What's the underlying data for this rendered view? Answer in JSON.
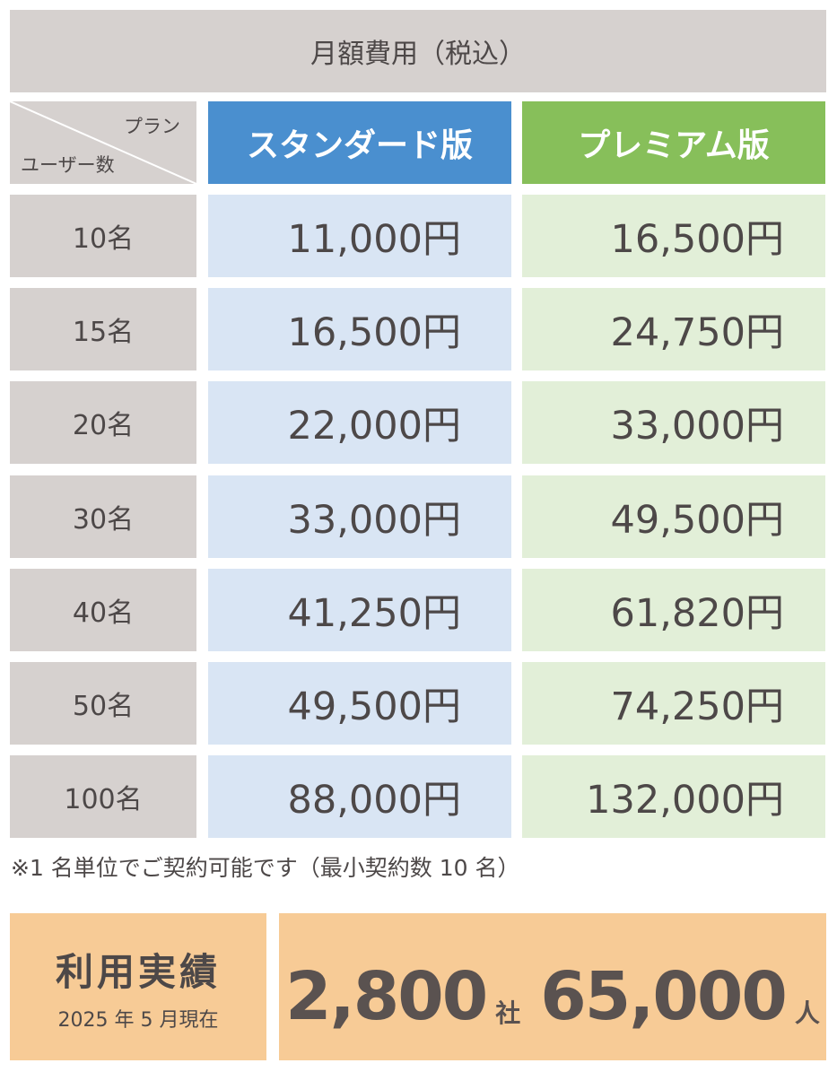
{
  "title": "月額費用（税込）",
  "corner": {
    "plan_label": "プラン",
    "user_label": "ユーザー数"
  },
  "plans": {
    "standard": "スタンダード版",
    "premium": "プレミアム版"
  },
  "rows": [
    {
      "users": "10名",
      "standard": "11,000円",
      "premium": "16,500円"
    },
    {
      "users": "15名",
      "standard": "16,500円",
      "premium": "24,750円"
    },
    {
      "users": "20名",
      "standard": "22,000円",
      "premium": "33,000円"
    },
    {
      "users": "30名",
      "standard": "33,000円",
      "premium": "49,500円"
    },
    {
      "users": "40名",
      "standard": "41,250円",
      "premium": "61,820円"
    },
    {
      "users": "50名",
      "standard": "49,500円",
      "premium": "74,250円"
    },
    {
      "users": "100名",
      "standard": "88,000円",
      "premium": "132,000円"
    }
  ],
  "note": "※1 名単位でご契約可能です（最小契約数 10 名）",
  "achievements": {
    "title": "利用実績",
    "as_of": "2025 年 5 月現在",
    "companies_value": "2,800",
    "companies_unit": "社",
    "users_value": "65,000",
    "users_unit": "人"
  },
  "colors": {
    "gray": "#d6d1cf",
    "standard_header": "#4a8fcf",
    "premium_header": "#87bf5a",
    "standard_cell": "#d9e5f4",
    "premium_cell": "#e2efd8",
    "achievement_bg": "#f7cb96",
    "text": "#4d4848"
  }
}
